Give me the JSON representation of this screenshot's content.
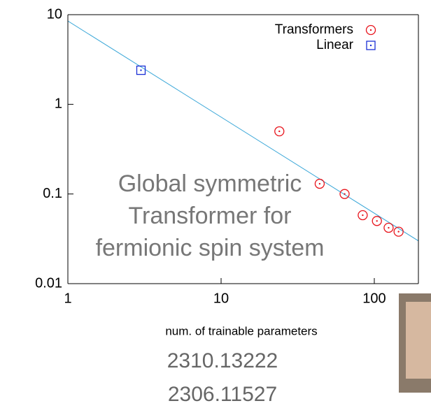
{
  "chart_data": {
    "type": "scatter",
    "xlabel": "num. of trainable parameters",
    "log_x": true,
    "log_y": true,
    "xlim": [
      1,
      194
    ],
    "ylim": [
      0.01,
      10
    ],
    "xticks": [
      1,
      10,
      100
    ],
    "yticks": [
      0.01,
      0.1,
      1,
      10
    ],
    "legend": "upper right",
    "series": [
      {
        "name": "Transformers",
        "color": "#e8141c",
        "marker": "circle",
        "x": [
          24,
          44,
          64,
          84,
          104,
          124,
          144
        ],
        "values": [
          0.5,
          0.13,
          0.1,
          0.058,
          0.05,
          0.042,
          0.038
        ]
      },
      {
        "name": "Linear",
        "color": "#1a2fd6",
        "marker": "square",
        "x": [
          3
        ],
        "values": [
          2.4
        ]
      }
    ],
    "fit_line": {
      "color": "#3aa7d8",
      "x": [
        1,
        194
      ],
      "values": [
        8.5,
        0.03
      ]
    },
    "annotation": [
      "Global symmetric",
      "Transformer for",
      "fermionic spin system"
    ],
    "footer": [
      "2310.13222",
      "2306.11527"
    ]
  }
}
